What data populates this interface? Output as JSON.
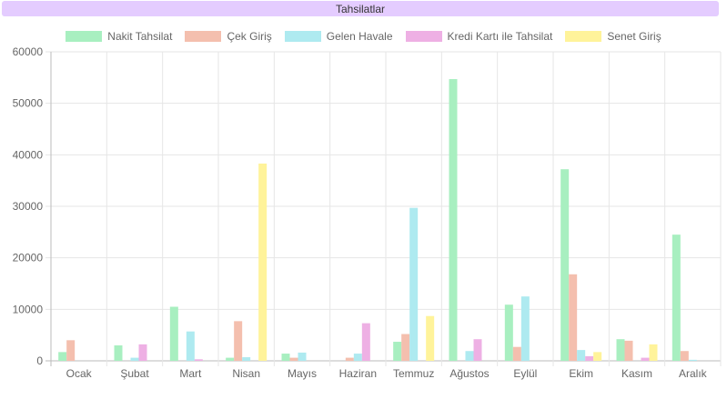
{
  "header": {
    "title": "Tahsilatlar"
  },
  "chart_data": {
    "type": "bar",
    "categories": [
      "Ocak",
      "Şubat",
      "Mart",
      "Nisan",
      "Mayıs",
      "Haziran",
      "Temmuz",
      "Ağustos",
      "Eylül",
      "Ekim",
      "Kasım",
      "Aralık"
    ],
    "series": [
      {
        "name": "Nakit Tahsilat",
        "color": "#a8efc0",
        "values": [
          1700,
          3000,
          10500,
          600,
          1400,
          0,
          3700,
          54700,
          10900,
          37200,
          4200,
          24500
        ]
      },
      {
        "name": "Çek Giriş",
        "color": "#f4bfae",
        "values": [
          4000,
          0,
          0,
          7700,
          600,
          600,
          5200,
          0,
          2700,
          16800,
          3900,
          1900
        ]
      },
      {
        "name": "Gelen Havale",
        "color": "#aeeaf0",
        "values": [
          0,
          600,
          5700,
          700,
          1600,
          1400,
          29700,
          1900,
          12500,
          2100,
          0,
          200
        ]
      },
      {
        "name": "Kredi Kartı ile Tahsilat",
        "color": "#eeb0e4",
        "values": [
          0,
          3200,
          300,
          0,
          0,
          7300,
          0,
          4200,
          0,
          900,
          600,
          0
        ]
      },
      {
        "name": "Senet Giriş",
        "color": "#fff39a",
        "values": [
          0,
          0,
          0,
          38300,
          0,
          0,
          8700,
          0,
          0,
          1700,
          3200,
          0
        ]
      }
    ],
    "yticks": [
      "0",
      "10000",
      "20000",
      "30000",
      "40000",
      "50000",
      "60000"
    ],
    "ylim": [
      0,
      60000
    ],
    "grid": true,
    "legend_position": "top"
  }
}
